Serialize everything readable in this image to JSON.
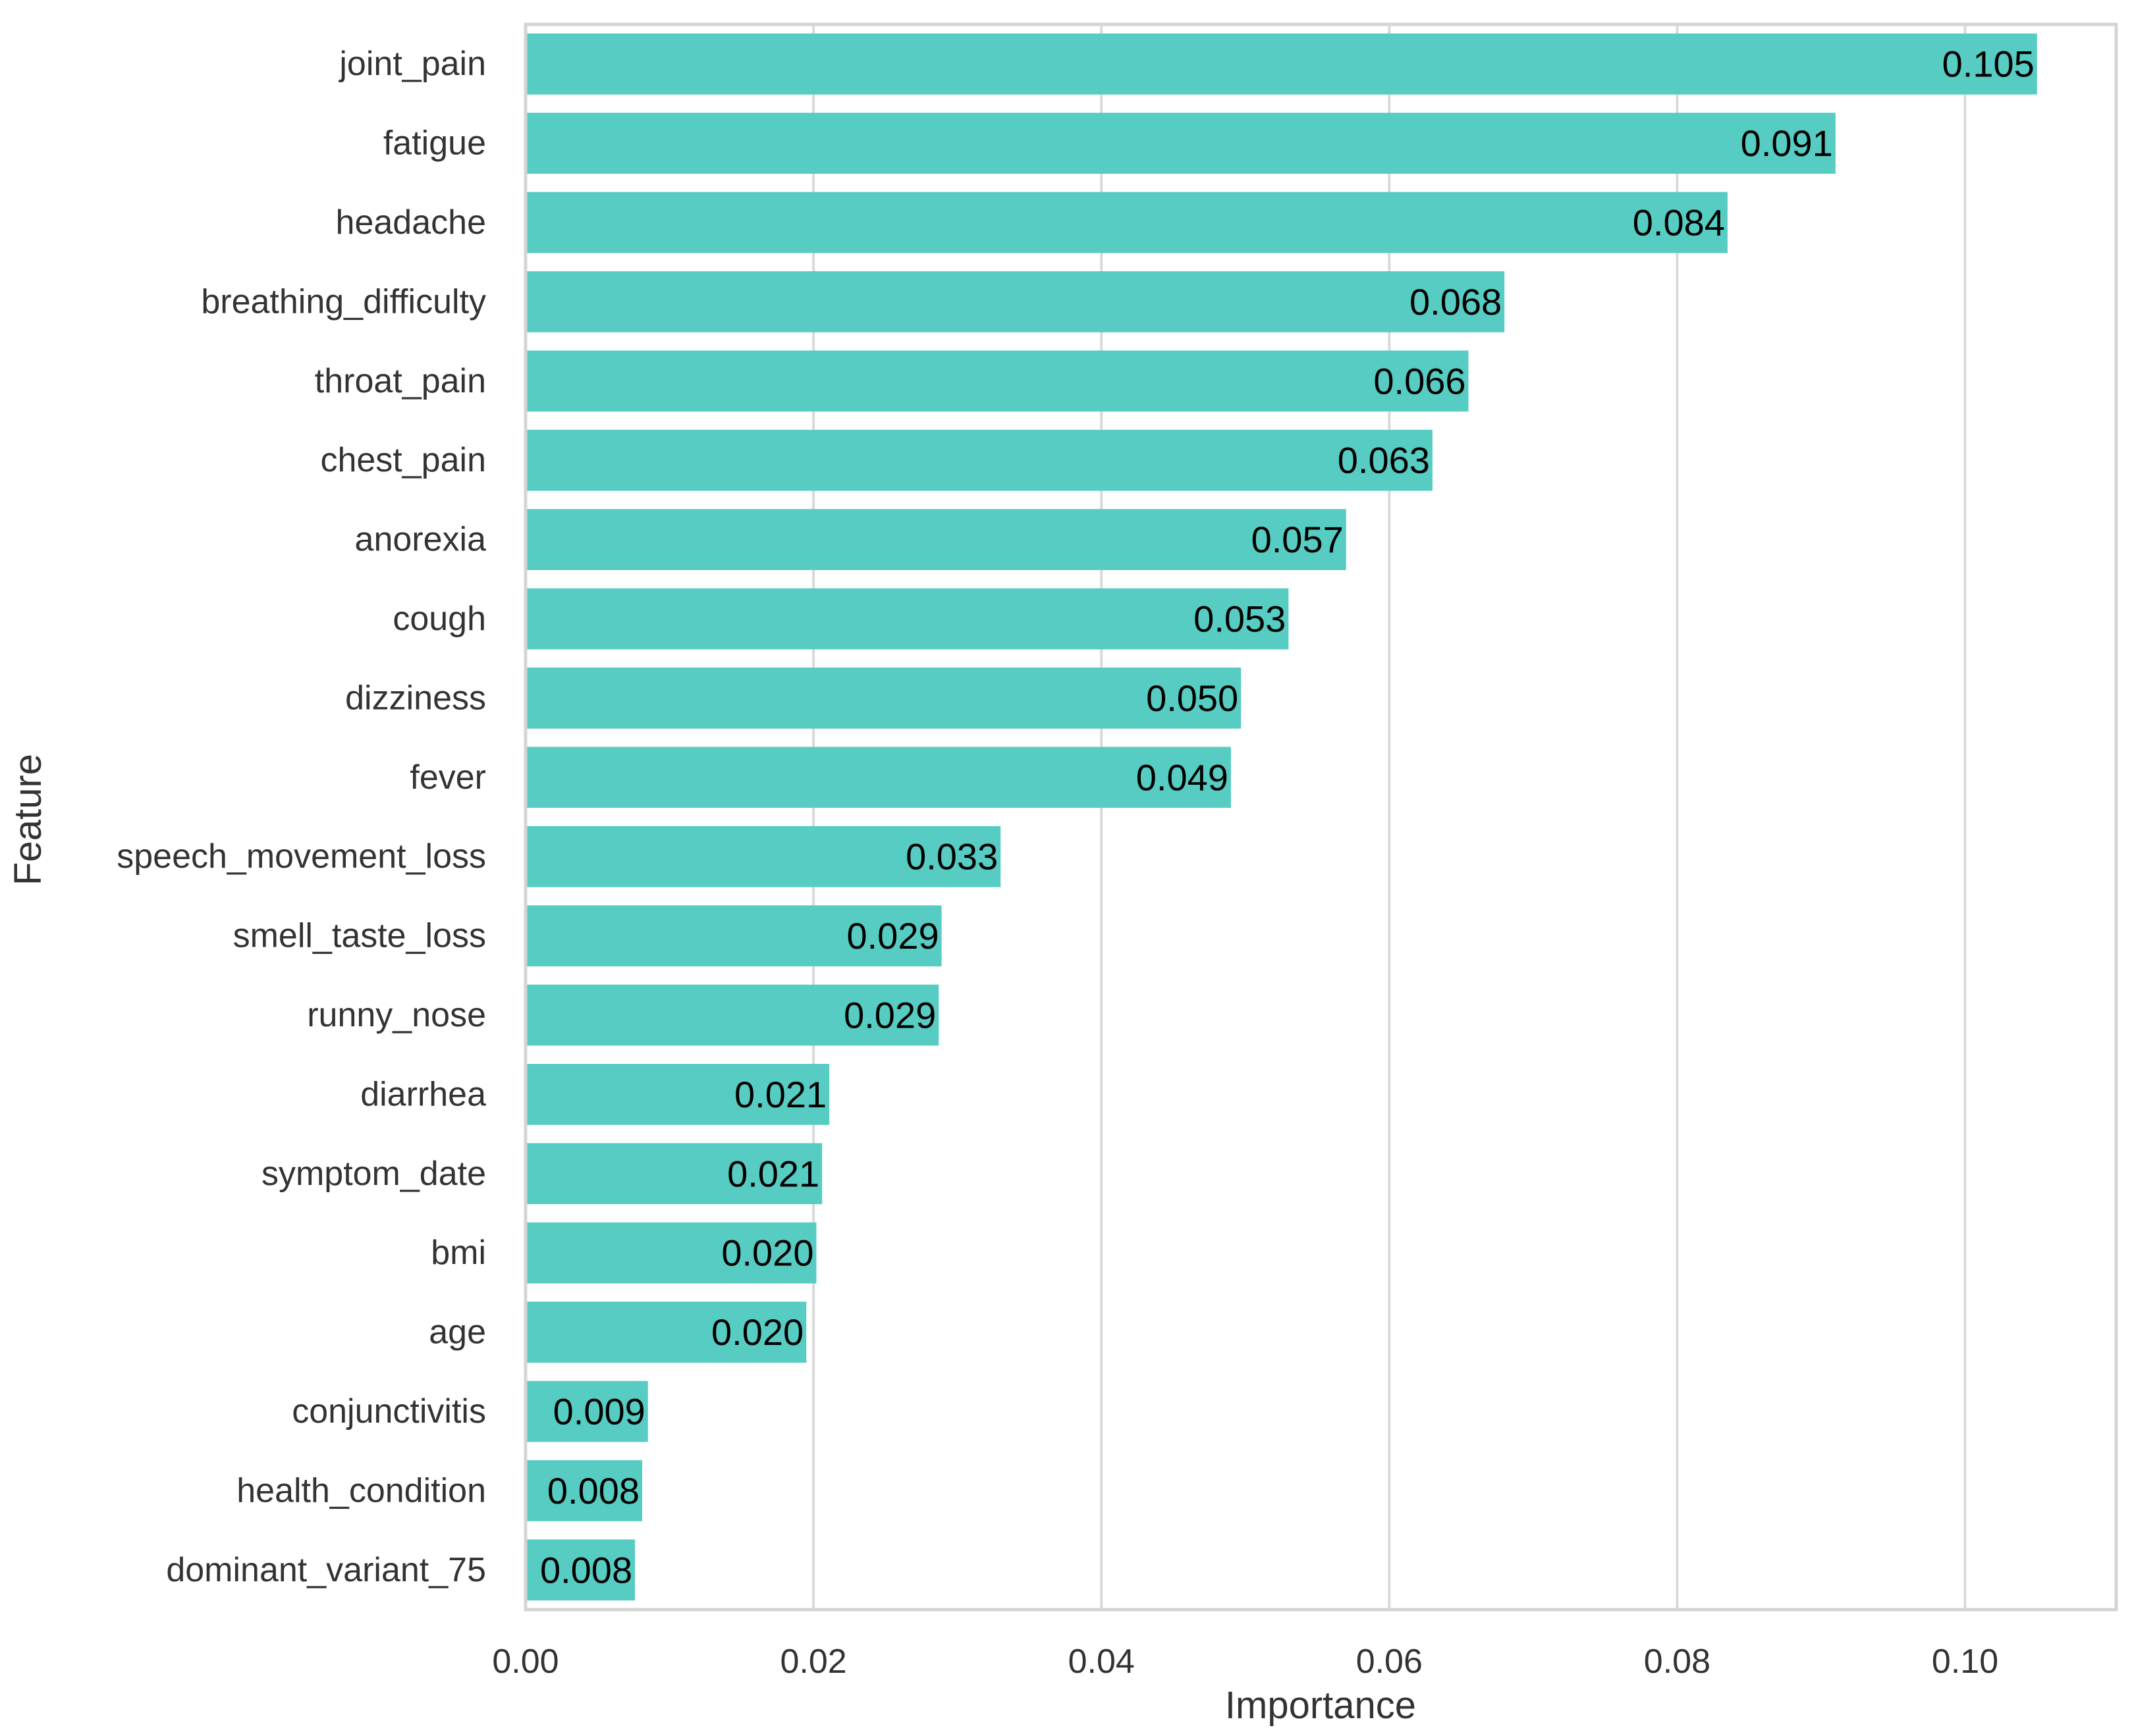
{
  "chart_data": {
    "type": "bar",
    "orientation": "horizontal",
    "title": "",
    "xlabel": "Importance",
    "ylabel": "Feature",
    "xlim": [
      0,
      0.1105
    ],
    "xticks": [
      0.0,
      0.02,
      0.04,
      0.06,
      0.08,
      0.1
    ],
    "xtick_labels": [
      "0.00",
      "0.02",
      "0.04",
      "0.06",
      "0.08",
      "0.10"
    ],
    "grid": "vertical",
    "bar_color": "#56CCC2",
    "categories": [
      "joint_pain",
      "fatigue",
      "headache",
      "breathing_difficulty",
      "throat_pain",
      "chest_pain",
      "anorexia",
      "cough",
      "dizziness",
      "fever",
      "speech_movement_loss",
      "smell_taste_loss",
      "runny_nose",
      "diarrhea",
      "symptom_date",
      "bmi",
      "age",
      "conjunctivitis",
      "health_condition",
      "dominant_variant_75"
    ],
    "values": [
      0.105,
      0.091,
      0.0835,
      0.068,
      0.0655,
      0.063,
      0.057,
      0.053,
      0.0497,
      0.049,
      0.033,
      0.0289,
      0.0287,
      0.0211,
      0.0206,
      0.0202,
      0.0195,
      0.0085,
      0.0081,
      0.0076
    ],
    "labels": [
      "0.105",
      "0.091",
      "0.084",
      "0.068",
      "0.066",
      "0.063",
      "0.057",
      "0.053",
      "0.050",
      "0.049",
      "0.033",
      "0.029",
      "0.029",
      "0.021",
      "0.021",
      "0.020",
      "0.020",
      "0.009",
      "0.008",
      "0.008"
    ]
  }
}
